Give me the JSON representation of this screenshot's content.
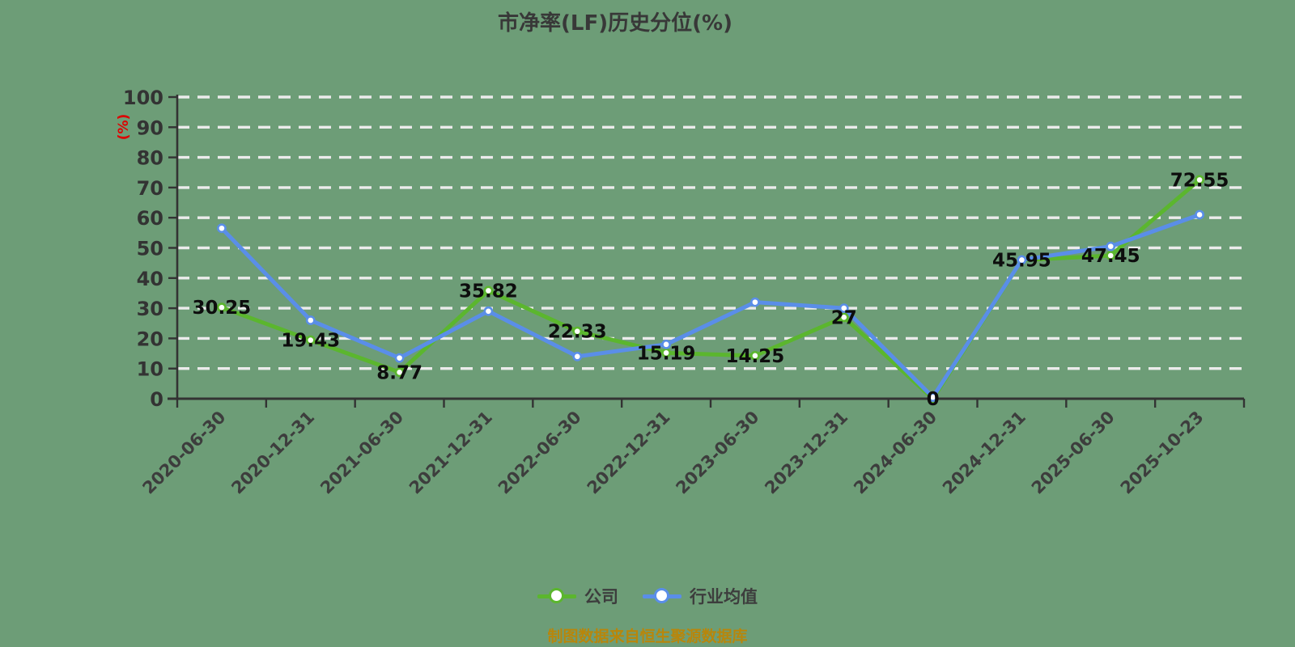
{
  "title": "市净率(LF)历史分位(%)",
  "source_note": "制图数据来自恒生聚源数据库",
  "colors": {
    "background": "#6d9d77",
    "title_text": "#383838",
    "axis": "#333333",
    "tick_label": "#3d3d3d",
    "gridline": "#ebebeb",
    "data_label": "#0d0d0d",
    "y_unit_label": "#dd0000",
    "source_note": "#b8860b",
    "marker_fill": "#ffffff"
  },
  "chart_data": {
    "type": "line",
    "title": "市净率(LF)历史分位(%)",
    "categories": [
      "2020-06-30",
      "2020-12-31",
      "2021-06-30",
      "2021-12-31",
      "2022-06-30",
      "2022-12-31",
      "2023-06-30",
      "2023-12-31",
      "2024-06-30",
      "2024-12-31",
      "2025-06-30",
      "2025-10-23"
    ],
    "series": [
      {
        "name": "公司",
        "color": "#5bb62e",
        "show_labels": true,
        "values": [
          30.25,
          19.43,
          8.77,
          35.82,
          22.33,
          15.19,
          14.25,
          27,
          0,
          45.95,
          47.45,
          72.55
        ]
      },
      {
        "name": "行业均值",
        "color": "#5a8ee8",
        "show_labels": false,
        "values": [
          56.5,
          26,
          13.5,
          29,
          14,
          18,
          32,
          30,
          0.5,
          46,
          50.5,
          61
        ]
      }
    ],
    "xlabel": "",
    "ylabel": "(%)",
    "ylim": [
      0,
      100
    ],
    "ytick_step": 10,
    "grid": "horizontal-white-dashed",
    "x_label_rotation": -45,
    "legend_position": "bottom",
    "legend_entries": [
      "公司",
      "行业均值"
    ]
  }
}
